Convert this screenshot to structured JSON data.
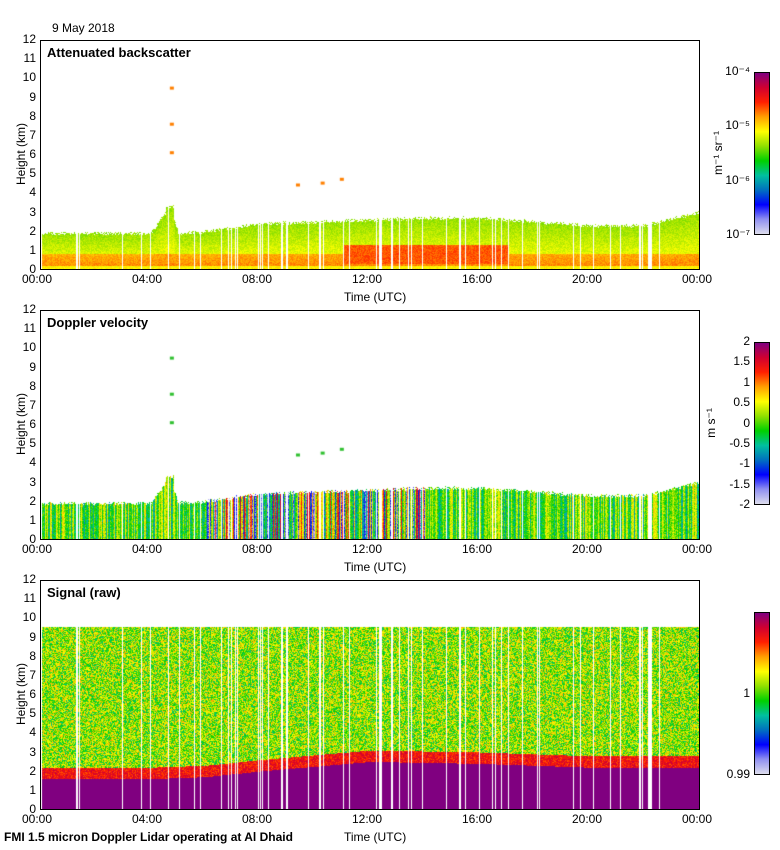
{
  "date": "9 May 2018",
  "footer": "FMI 1.5 micron Doppler Lidar operating at Al Dhaid",
  "colors": {
    "colormap": [
      "#dcdcec",
      "#9090f0",
      "#0000ff",
      "#0070c0",
      "#00c0a0",
      "#00d000",
      "#90e000",
      "#ffff00",
      "#ffa000",
      "#ff2000",
      "#d00030",
      "#800080"
    ]
  },
  "chart_data": [
    {
      "type": "heatmap",
      "title": "Attenuated backscatter",
      "xlabel": "Time (UTC)",
      "ylabel": "Height (km)",
      "xticks": [
        "00:00",
        "04:00",
        "08:00",
        "12:00",
        "16:00",
        "20:00",
        "00:00"
      ],
      "yticks": [
        "0",
        "1",
        "2",
        "3",
        "4",
        "5",
        "6",
        "7",
        "8",
        "9",
        "10",
        "11",
        "12"
      ],
      "ylim": [
        0,
        12
      ],
      "colorbar": {
        "unit": "m-1 sr-1",
        "unit_display": "m⁻¹ sr⁻¹",
        "ticks": [
          "10⁻⁴",
          "10⁻⁵",
          "10⁻⁶",
          "10⁻⁷"
        ],
        "range": [
          1e-07,
          0.0001
        ],
        "scale": "log"
      },
      "boundary_layer_top_km": {
        "hours": [
          0,
          2,
          4,
          4.7,
          5,
          6,
          8,
          10,
          12,
          14,
          16,
          18,
          20,
          22,
          24
        ],
        "values": [
          1.9,
          1.9,
          1.9,
          3.3,
          1.9,
          2.0,
          2.4,
          2.5,
          2.6,
          2.7,
          2.7,
          2.5,
          2.3,
          2.3,
          3.0
        ]
      },
      "features": [
        {
          "hour": 4.7,
          "height_km": [
            6.2,
            7.7,
            9.6
          ]
        },
        {
          "hour": 9.3,
          "height_km": [
            4.5
          ]
        },
        {
          "hour": 10.2,
          "height_km": [
            4.6
          ]
        },
        {
          "hour": 10.9,
          "height_km": [
            4.8
          ]
        }
      ]
    },
    {
      "type": "heatmap",
      "title": "Doppler velocity",
      "xlabel": "Time (UTC)",
      "ylabel": "Height (km)",
      "xticks": [
        "00:00",
        "04:00",
        "08:00",
        "12:00",
        "16:00",
        "20:00",
        "00:00"
      ],
      "yticks": [
        "0",
        "1",
        "2",
        "3",
        "4",
        "5",
        "6",
        "7",
        "8",
        "9",
        "10",
        "11",
        "12"
      ],
      "ylim": [
        0,
        12
      ],
      "colorbar": {
        "unit": "m s-1",
        "unit_display": "m s⁻¹",
        "ticks": [
          "2",
          "1.5",
          "1",
          "0.5",
          "0",
          "-0.5",
          "-1",
          "-1.5",
          "-2"
        ],
        "range": [
          -2,
          2
        ],
        "scale": "linear"
      }
    },
    {
      "type": "heatmap",
      "title": "Signal (raw)",
      "xlabel": "Time (UTC)",
      "ylabel": "Height (km)",
      "xticks": [
        "00:00",
        "04:00",
        "08:00",
        "12:00",
        "16:00",
        "20:00",
        "00:00"
      ],
      "yticks": [
        "0",
        "1",
        "2",
        "3",
        "4",
        "5",
        "6",
        "7",
        "8",
        "9",
        "10",
        "11",
        "12"
      ],
      "ylim": [
        0,
        12
      ],
      "colorbar": {
        "unit": "",
        "ticks": [
          "1",
          "0.99"
        ],
        "range": [
          0.99,
          1.01
        ],
        "scale": "linear"
      },
      "signal_top_km": 9.6,
      "saturated_layer_top_km": {
        "hours": [
          0,
          4,
          6,
          8,
          12,
          16,
          20,
          24
        ],
        "values": [
          1.6,
          1.6,
          1.7,
          2.0,
          2.5,
          2.4,
          2.2,
          2.2
        ]
      }
    }
  ]
}
